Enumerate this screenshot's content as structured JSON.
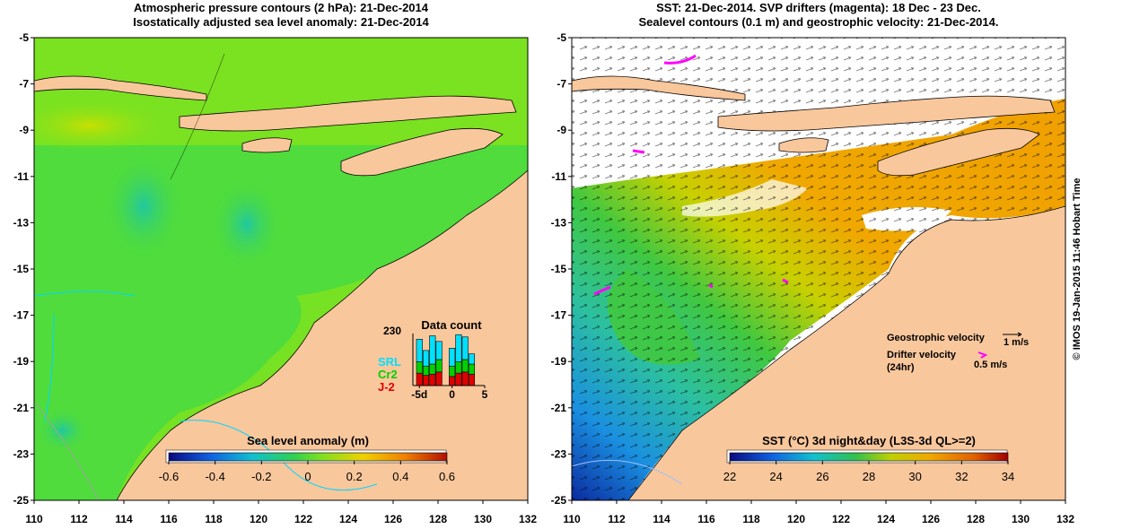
{
  "left_panel": {
    "title_line1": "Atmospheric pressure contours (2 hPa): 21-Dec-2014",
    "title_line2": "Isostatically adjusted sea level anomaly: 21-Dec-2014",
    "colorbar_label": "Sea level anomaly (m)",
    "colorbar_ticks": [
      "-0.6",
      "-0.4",
      "-0.2",
      "0",
      "0.2",
      "0.4",
      "0.6"
    ],
    "inset": {
      "title": "Data count",
      "ymax_label": "230",
      "x_ticks": [
        "-5d",
        "0",
        "5"
      ],
      "legend": [
        {
          "name": "SRL",
          "color": "#00e0ff"
        },
        {
          "name": "Cr2",
          "color": "#00d000"
        },
        {
          "name": "J-2",
          "color": "#e00000"
        }
      ],
      "chart_data": {
        "type": "bar",
        "stacked": true,
        "x": [
          -5,
          -4,
          -3,
          -2,
          -1,
          0,
          1,
          2,
          3,
          4
        ],
        "series": [
          {
            "name": "J-2",
            "values": [
              55,
              45,
              50,
              60,
              0,
              40,
              55,
              60,
              50,
              0
            ]
          },
          {
            "name": "Cr2",
            "values": [
              50,
              40,
              45,
              55,
              0,
              45,
              50,
              55,
              45,
              0
            ]
          },
          {
            "name": "SRL",
            "values": [
              100,
              70,
              125,
              80,
              0,
              80,
              120,
              100,
              45,
              0
            ]
          }
        ],
        "ylim": [
          0,
          230
        ],
        "xlim": [
          -6,
          5
        ]
      }
    }
  },
  "right_panel": {
    "title_line1": "SST: 21-Dec-2014. SVP drifters (magenta): 18 Dec - 23 Dec.",
    "title_line2": "Sealevel contours (0.1 m) and geostrophic velocity: 21-Dec-2014.",
    "colorbar_label": "SST (°C) 3d night&day (L3S-3d QL>=2)",
    "colorbar_ticks": [
      "22",
      "24",
      "26",
      "28",
      "30",
      "32",
      "34"
    ],
    "legend": {
      "geo_label": "Geostrophic velocity",
      "geo_scale": "1 m/s",
      "drifter_label": "Drifter velocity",
      "drifter_sub": "(24hr)",
      "drifter_scale": "0.5 m/s"
    }
  },
  "axes": {
    "y_ticks": [
      "-5",
      "-7",
      "-9",
      "-11",
      "-13",
      "-15",
      "-17",
      "-19",
      "-21",
      "-23",
      "-25"
    ],
    "x_ticks": [
      "110",
      "112",
      "114",
      "116",
      "118",
      "120",
      "122",
      "124",
      "126",
      "128",
      "130",
      "132"
    ]
  },
  "credit": "© IMOS 19-Jan-2015 11:46 Hobart Time",
  "colors": {
    "land": "#f9c79c",
    "sla_base": "#4fdc3c",
    "sst_base": "#f0a800",
    "drifter": "#ff00ff"
  }
}
